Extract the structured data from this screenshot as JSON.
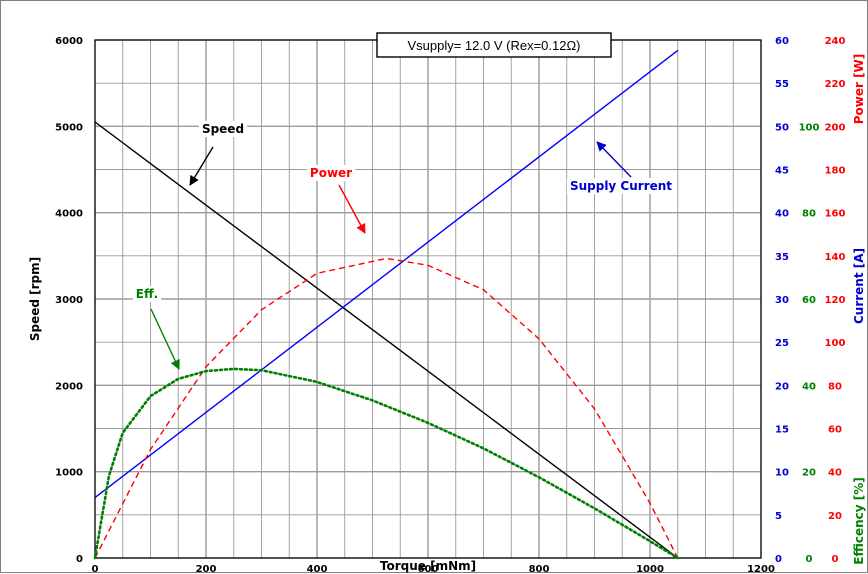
{
  "chart_data": {
    "type": "line",
    "title_box": "Vsupply=  12.0  V  (Rex=0.12Ω)",
    "xlabel": "Torque [mNm]",
    "xlim": [
      0,
      1200
    ],
    "x_ticks": [
      0,
      200,
      400,
      600,
      800,
      1000,
      1200
    ],
    "y_axes": [
      {
        "id": "speed",
        "label": "Speed [rpm]",
        "ylim": [
          0,
          6000
        ],
        "ticks": [
          0,
          1000,
          2000,
          3000,
          4000,
          5000,
          6000
        ],
        "color": "#000000"
      },
      {
        "id": "current",
        "label": "Current [A]",
        "ylim": [
          0,
          60
        ],
        "ticks": [
          0,
          5,
          10,
          15,
          20,
          25,
          30,
          35,
          40,
          45,
          50,
          55,
          60
        ],
        "color": "#0000cc"
      },
      {
        "id": "efficiency",
        "label": "Efficency [%]",
        "ylim": [
          0,
          120
        ],
        "ticks": [
          0,
          20,
          40,
          60,
          80,
          100
        ],
        "color": "#008000"
      },
      {
        "id": "power",
        "label": "Power [W]",
        "ylim": [
          0,
          240
        ],
        "ticks": [
          0,
          20,
          40,
          60,
          80,
          100,
          120,
          140,
          160,
          180,
          200,
          220,
          240
        ],
        "color": "#ff0000"
      }
    ],
    "series": [
      {
        "name": "Speed",
        "axis": "speed",
        "color": "#000000",
        "style": "solid",
        "x": [
          0,
          1050
        ],
        "y": [
          5050,
          0
        ]
      },
      {
        "name": "Supply Current",
        "axis": "current",
        "color": "#0000ff",
        "style": "solid",
        "x": [
          0,
          1050
        ],
        "y": [
          7,
          58.8
        ]
      },
      {
        "name": "Power",
        "axis": "power",
        "color": "#ff0000",
        "style": "dashed",
        "x": [
          0,
          100,
          200,
          300,
          400,
          525,
          600,
          700,
          800,
          900,
          1000,
          1050
        ],
        "y": [
          0,
          50.3,
          88.6,
          115.0,
          131.9,
          138.8,
          135.6,
          124.3,
          101.5,
          69.1,
          25.4,
          0
        ]
      },
      {
        "name": "Eff.",
        "axis": "efficiency",
        "color": "#008000",
        "style": "dotted",
        "x": [
          0,
          25,
          50,
          100,
          150,
          200,
          250,
          300,
          400,
          500,
          600,
          700,
          800,
          900,
          1000,
          1050
        ],
        "y": [
          0,
          19,
          29,
          37.5,
          41.5,
          43.3,
          43.8,
          43.5,
          40.8,
          36.5,
          31.3,
          25.4,
          18.7,
          11.5,
          3.9,
          0
        ]
      }
    ],
    "annotations": [
      {
        "text": "Speed",
        "series": "Speed",
        "color": "#000000"
      },
      {
        "text": "Power",
        "series": "Power",
        "color": "#ff0000"
      },
      {
        "text": "Eff.",
        "series": "Eff.",
        "color": "#008000"
      },
      {
        "text": "Supply Current",
        "series": "Supply Current",
        "color": "#0000cc"
      }
    ],
    "grid": true
  }
}
